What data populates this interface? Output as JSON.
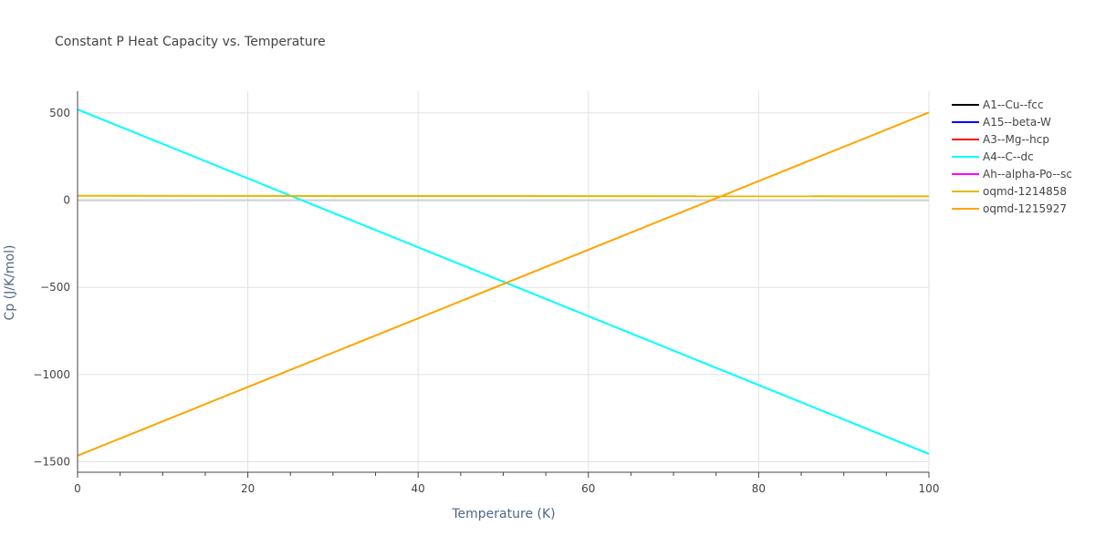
{
  "chart_data": {
    "type": "line",
    "title": "Constant P Heat Capacity vs. Temperature",
    "xlabel": "Temperature (K)",
    "ylabel": "Cp (J/K/mol)",
    "xlim": [
      0,
      100
    ],
    "ylim": [
      -1560,
      625
    ],
    "x_ticks": [
      0,
      20,
      40,
      60,
      80,
      100
    ],
    "x_tick_labels": [
      "0",
      "20",
      "40",
      "60",
      "80",
      "100"
    ],
    "y_ticks": [
      500,
      0,
      -500,
      -1000,
      -1500
    ],
    "y_tick_labels": [
      "500",
      "0",
      "−500",
      "−1000",
      "−1500"
    ],
    "grid": true,
    "legend_position": "top-right",
    "series": [
      {
        "name": "A1--Cu--fcc",
        "color": "#000000",
        "x": [],
        "y": []
      },
      {
        "name": "A15--beta-W",
        "color": "#0000ff",
        "x": [],
        "y": []
      },
      {
        "name": "A3--Mg--hcp",
        "color": "#ff0000",
        "x": [],
        "y": []
      },
      {
        "name": "A4--C--dc",
        "color": "#00ffff",
        "x": [
          0,
          100
        ],
        "y": [
          520,
          -1455
        ]
      },
      {
        "name": "Ah--alpha-Po--sc",
        "color": "#ff00ff",
        "x": [],
        "y": []
      },
      {
        "name": "oqmd-1214858",
        "color": "#e6b800",
        "x": [
          0,
          100
        ],
        "y": [
          25,
          22
        ]
      },
      {
        "name": "oqmd-1215927",
        "color": "#ffa500",
        "x": [
          0,
          100
        ],
        "y": [
          -1465,
          503
        ]
      }
    ]
  }
}
